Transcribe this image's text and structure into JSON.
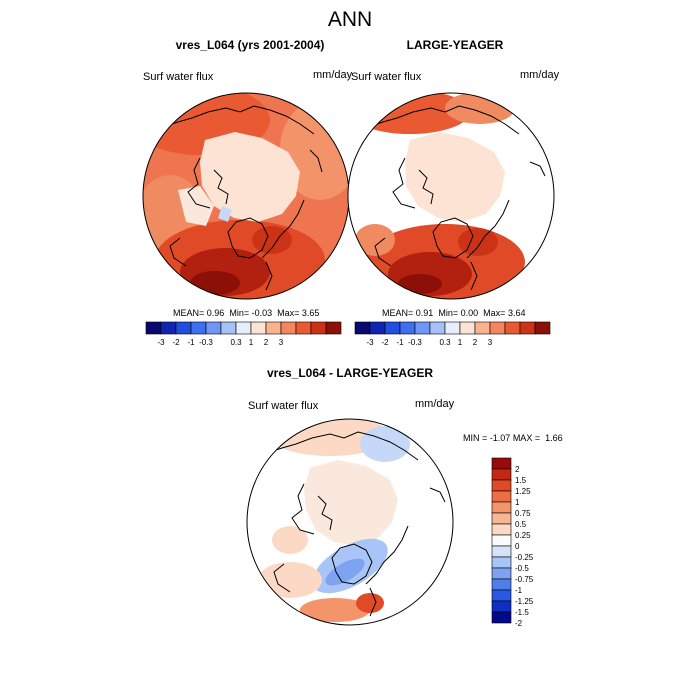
{
  "page": {
    "title": "ANN"
  },
  "colors": {
    "panel_scale": [
      "#08086e",
      "#0f24b3",
      "#1f4ee0",
      "#3d6ff0",
      "#6f96f4",
      "#a6c0f8",
      "#e6eefb",
      "#fde3d3",
      "#f9b48f",
      "#f4855c",
      "#e95a33",
      "#cc3316",
      "#8c0f08"
    ],
    "diff_scale": [
      "#990a08",
      "#c42814",
      "#e04a26",
      "#ec6e45",
      "#f3946b",
      "#f7b694",
      "#fbd9c4",
      "#fbfbfb",
      "#d5e3fa",
      "#a9c4f6",
      "#7ea3f1",
      "#4f7eec",
      "#2a57e4",
      "#0f2fc4",
      "#04088a"
    ],
    "land_line": "#000000"
  },
  "chart_data": [
    {
      "type": "polar-map",
      "title": "vres_L064 (yrs 2001-2004)",
      "variable": "Surf water flux",
      "units": "mm/day",
      "stats_label": {
        "mean": "MEAN=",
        "min": "Min=",
        "max": "Max="
      },
      "stats": {
        "mean": "0.96",
        "min": "-0.03",
        "max": "3.65"
      },
      "colorbar_ticks": [
        "-3",
        "-2",
        "-1",
        "-0.3",
        "0.3",
        "1",
        "2",
        "3"
      ],
      "coverage": "full"
    },
    {
      "type": "polar-map",
      "title": "LARGE-YEAGER",
      "variable": "Surf water flux",
      "units": "mm/day",
      "stats_label": {
        "mean": "MEAN=",
        "min": "Min=",
        "max": "Max="
      },
      "stats": {
        "mean": "0.91",
        "min": "0.00",
        "max": "3.64"
      },
      "colorbar_ticks": [
        "-3",
        "-2",
        "-1",
        "-0.3",
        "0.3",
        "1",
        "2",
        "3"
      ],
      "coverage": "ocean-only"
    },
    {
      "type": "polar-map",
      "title": "vres_L064 - LARGE-YEAGER",
      "variable": "Surf water flux",
      "units": "mm/day",
      "stats_label": {
        "min": "MIN =",
        "max": "MAX ="
      },
      "stats": {
        "min": "-1.07",
        "max": "1.66"
      },
      "colorbar_ticks": [
        "2",
        "1.5",
        "1.25",
        "1",
        "0.75",
        "0.5",
        "0.25",
        "0",
        "-0.25",
        "-0.5",
        "-0.75",
        "-1",
        "-1.25",
        "-1.5",
        "-2"
      ],
      "coverage": "ocean-only"
    }
  ]
}
